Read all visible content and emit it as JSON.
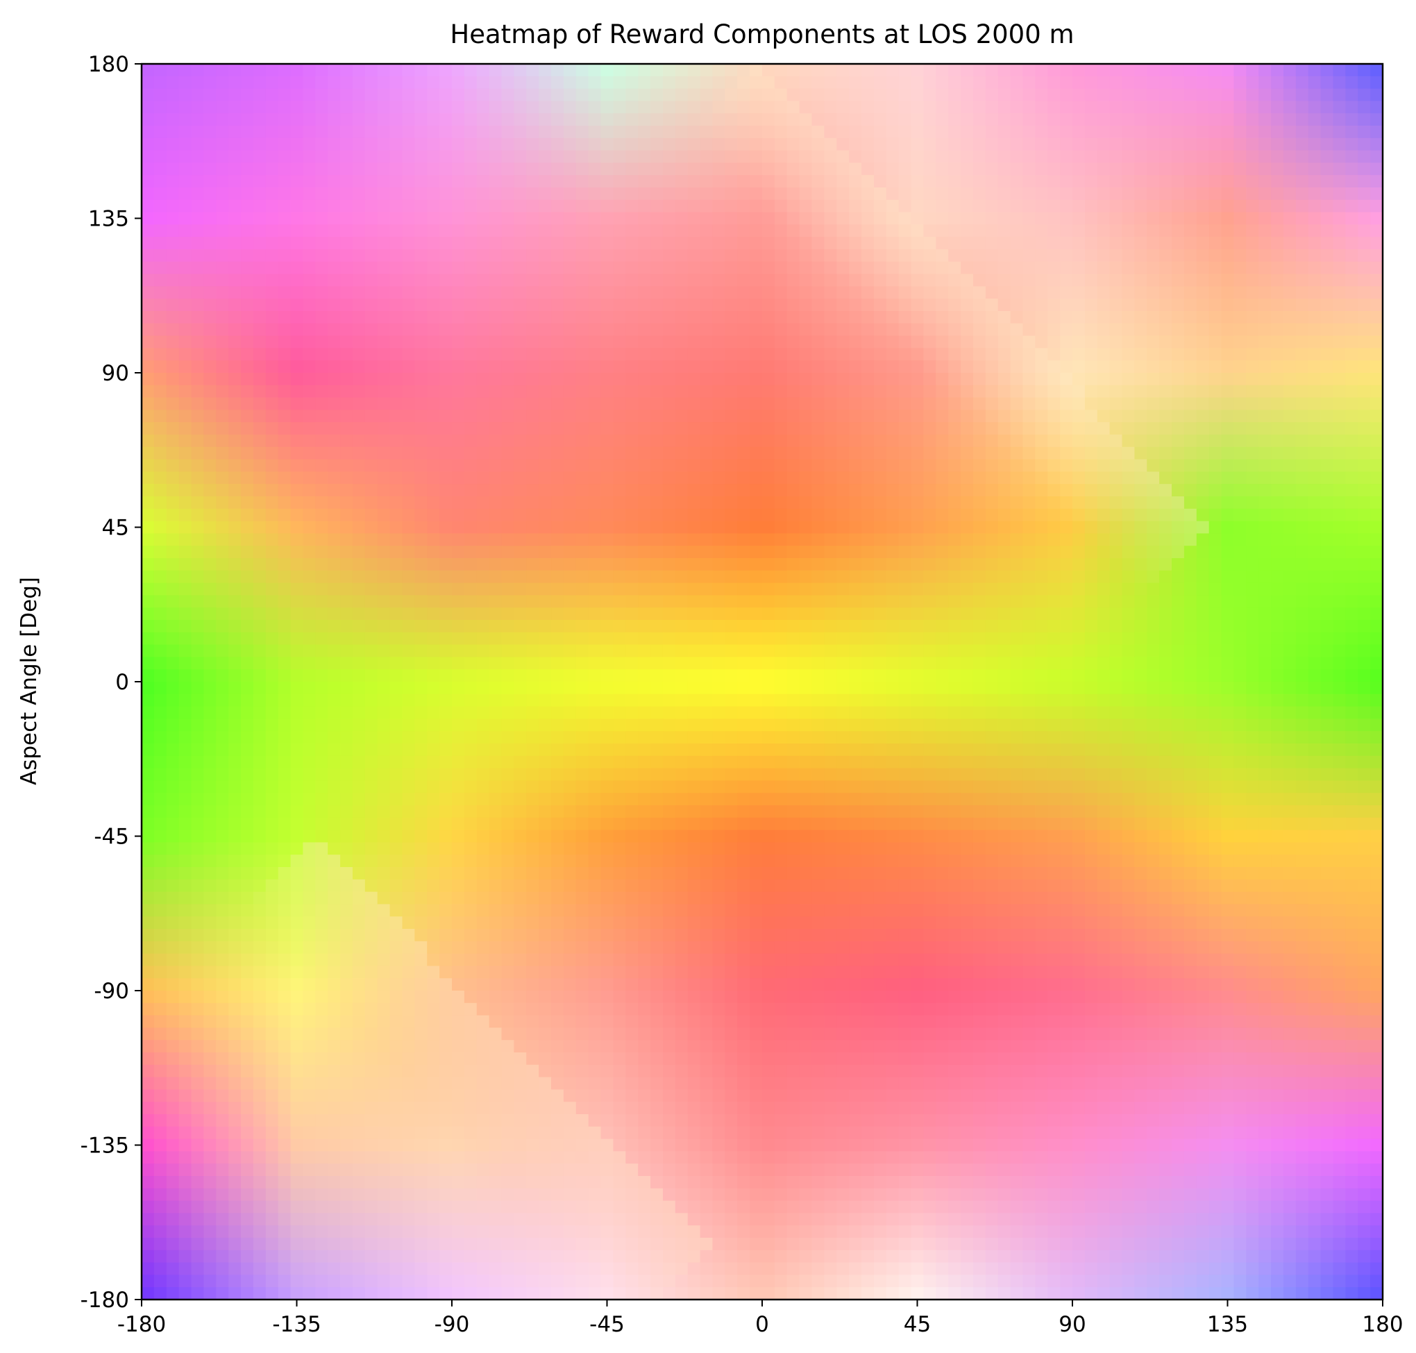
{
  "chart_data": {
    "type": "heatmap",
    "title": "Heatmap of Reward Components at LOS 2000 m",
    "xlabel": "",
    "ylabel": "Aspect Angle [Deg]",
    "xlim": [
      -180,
      180
    ],
    "ylim": [
      -180,
      180
    ],
    "x_ticks": [
      "-180",
      "-135",
      "-90",
      "-45",
      "0",
      "45",
      "90",
      "135",
      "180"
    ],
    "y_ticks": [
      "180",
      "135",
      "90",
      "45",
      "0",
      "-45",
      "-90",
      "-135",
      "-180"
    ],
    "grid": false,
    "colorbar": false,
    "grid_resolution": [
      100,
      100
    ],
    "color_anchors": [
      {
        "x": -180,
        "y": 180,
        "color": "#c265ff"
      },
      {
        "x": -135,
        "y": 180,
        "color": "#dd6dff"
      },
      {
        "x": -90,
        "y": 180,
        "color": "#eea6ff"
      },
      {
        "x": -45,
        "y": 180,
        "color": "#ccffe3"
      },
      {
        "x": 0,
        "y": 180,
        "color": "#ffd9bf"
      },
      {
        "x": 45,
        "y": 180,
        "color": "#ffd2d7"
      },
      {
        "x": 90,
        "y": 180,
        "color": "#ff99d9"
      },
      {
        "x": 135,
        "y": 180,
        "color": "#f58cf5"
      },
      {
        "x": 180,
        "y": 180,
        "color": "#5a5eff"
      },
      {
        "x": -180,
        "y": 135,
        "color": "#f266ff"
      },
      {
        "x": -135,
        "y": 135,
        "color": "#ff77e6"
      },
      {
        "x": -90,
        "y": 135,
        "color": "#ff93d7"
      },
      {
        "x": -45,
        "y": 135,
        "color": "#ffa2b3"
      },
      {
        "x": 0,
        "y": 135,
        "color": "#ff9c97"
      },
      {
        "x": 45,
        "y": 135,
        "color": "#ffd7c2"
      },
      {
        "x": 90,
        "y": 135,
        "color": "#ffc2c2"
      },
      {
        "x": 135,
        "y": 135,
        "color": "#ffa28f"
      },
      {
        "x": 180,
        "y": 135,
        "color": "#ff9fe3"
      },
      {
        "x": -180,
        "y": 90,
        "color": "#ff9e73"
      },
      {
        "x": -135,
        "y": 90,
        "color": "#ff5b9b"
      },
      {
        "x": -90,
        "y": 90,
        "color": "#ff779d"
      },
      {
        "x": -45,
        "y": 90,
        "color": "#ff8085"
      },
      {
        "x": 0,
        "y": 90,
        "color": "#ff7a73"
      },
      {
        "x": 45,
        "y": 90,
        "color": "#ff9a8c"
      },
      {
        "x": 90,
        "y": 90,
        "color": "#ffe6b8"
      },
      {
        "x": 135,
        "y": 90,
        "color": "#ffd38d"
      },
      {
        "x": 180,
        "y": 90,
        "color": "#ffe57a"
      },
      {
        "x": -180,
        "y": 45,
        "color": "#d8ff33"
      },
      {
        "x": -135,
        "y": 45,
        "color": "#ffb65c"
      },
      {
        "x": -90,
        "y": 45,
        "color": "#ff8670"
      },
      {
        "x": -45,
        "y": 45,
        "color": "#ff8a5a"
      },
      {
        "x": 0,
        "y": 45,
        "color": "#ff7d38"
      },
      {
        "x": 45,
        "y": 45,
        "color": "#ffa04f"
      },
      {
        "x": 90,
        "y": 45,
        "color": "#ffcc45"
      },
      {
        "x": 135,
        "y": 45,
        "color": "#8eff2a"
      },
      {
        "x": 180,
        "y": 45,
        "color": "#a5ff2a"
      },
      {
        "x": -180,
        "y": 0,
        "color": "#4cff22"
      },
      {
        "x": -135,
        "y": 0,
        "color": "#b5ff2a"
      },
      {
        "x": -90,
        "y": 0,
        "color": "#d8ff2d"
      },
      {
        "x": -45,
        "y": 0,
        "color": "#f3ff2f"
      },
      {
        "x": 0,
        "y": 0,
        "color": "#ffff2f"
      },
      {
        "x": 45,
        "y": 0,
        "color": "#e4ff2d"
      },
      {
        "x": 90,
        "y": 0,
        "color": "#c9ff2a"
      },
      {
        "x": 135,
        "y": 0,
        "color": "#9bff2a"
      },
      {
        "x": 180,
        "y": 0,
        "color": "#55ff1e"
      },
      {
        "x": -180,
        "y": -45,
        "color": "#7dff25"
      },
      {
        "x": -135,
        "y": -45,
        "color": "#c4ff30"
      },
      {
        "x": -90,
        "y": -45,
        "color": "#ffd645"
      },
      {
        "x": -45,
        "y": -45,
        "color": "#ffa03a"
      },
      {
        "x": 0,
        "y": -45,
        "color": "#ff7d3a"
      },
      {
        "x": 45,
        "y": -45,
        "color": "#ff8c45"
      },
      {
        "x": 90,
        "y": -45,
        "color": "#ffa050"
      },
      {
        "x": 135,
        "y": -45,
        "color": "#ffd23c"
      },
      {
        "x": 180,
        "y": -45,
        "color": "#ffcf45"
      },
      {
        "x": -180,
        "y": -90,
        "color": "#ffbe56"
      },
      {
        "x": -135,
        "y": -90,
        "color": "#fff57a"
      },
      {
        "x": -90,
        "y": -90,
        "color": "#ffbf8f"
      },
      {
        "x": -45,
        "y": -90,
        "color": "#ff9c90"
      },
      {
        "x": 0,
        "y": -90,
        "color": "#ff6a75"
      },
      {
        "x": 45,
        "y": -90,
        "color": "#ff5f80"
      },
      {
        "x": 90,
        "y": -90,
        "color": "#ff6e8e"
      },
      {
        "x": 135,
        "y": -90,
        "color": "#ff8c8c"
      },
      {
        "x": 180,
        "y": -90,
        "color": "#ffa560"
      },
      {
        "x": -180,
        "y": -135,
        "color": "#ff4ecf"
      },
      {
        "x": -135,
        "y": -135,
        "color": "#ffcaa6"
      },
      {
        "x": -90,
        "y": -135,
        "color": "#ffd6b0"
      },
      {
        "x": -45,
        "y": -135,
        "color": "#ffc0b7"
      },
      {
        "x": 0,
        "y": -135,
        "color": "#ff8a8e"
      },
      {
        "x": 45,
        "y": -135,
        "color": "#ff94a6"
      },
      {
        "x": 90,
        "y": -135,
        "color": "#ff8ec9"
      },
      {
        "x": 135,
        "y": -135,
        "color": "#f48ef0"
      },
      {
        "x": 180,
        "y": -135,
        "color": "#f268ff"
      },
      {
        "x": -180,
        "y": -180,
        "color": "#6e35ff"
      },
      {
        "x": -135,
        "y": -180,
        "color": "#c8a0ff"
      },
      {
        "x": -90,
        "y": -180,
        "color": "#f2c5ff"
      },
      {
        "x": -45,
        "y": -180,
        "color": "#ffe0ec"
      },
      {
        "x": 0,
        "y": -180,
        "color": "#ffc8b4"
      },
      {
        "x": 45,
        "y": -180,
        "color": "#fff4ef"
      },
      {
        "x": 90,
        "y": -180,
        "color": "#e3baf9"
      },
      {
        "x": 135,
        "y": -180,
        "color": "#a9b4ff"
      },
      {
        "x": 180,
        "y": -180,
        "color": "#5a52ff"
      }
    ],
    "diagonal_discontinuities": [
      {
        "from": [
          0,
          180
        ],
        "to": [
          130,
          45
        ],
        "description": "sharp diagonal edge upper-right"
      },
      {
        "from": [
          -130,
          -45
        ],
        "to": [
          -15,
          -165
        ],
        "description": "sharp diagonal edge lower-left"
      }
    ]
  }
}
